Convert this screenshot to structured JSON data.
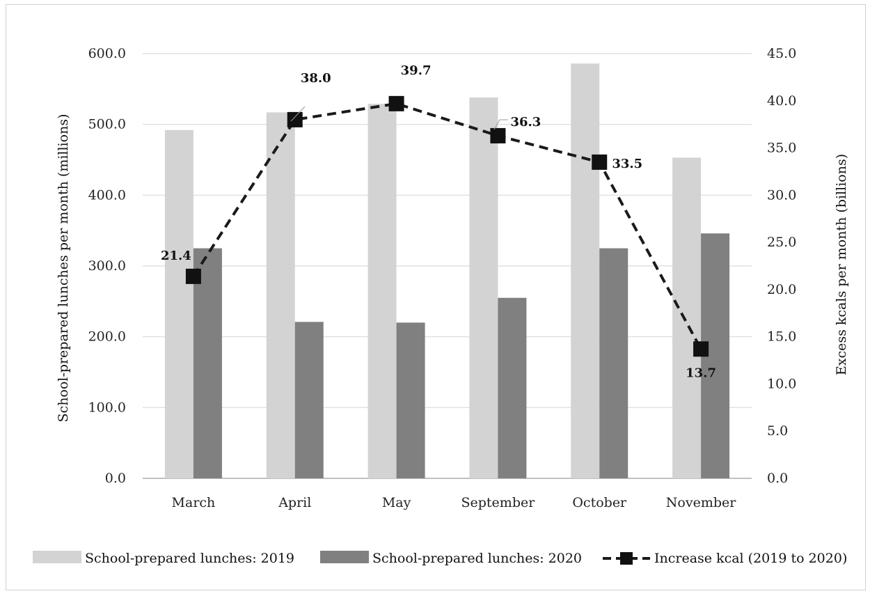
{
  "chart_data": {
    "type": "bar",
    "categories": [
      "March",
      "April",
      "May",
      "September",
      "October",
      "November"
    ],
    "series": [
      {
        "name": "School-prepared lunches: 2019",
        "kind": "bar",
        "axis": "left",
        "color": "#d3d3d3",
        "values": [
          492.0,
          517.0,
          529.0,
          538.0,
          586.0,
          453.0
        ]
      },
      {
        "name": "School-prepared lunches: 2020",
        "kind": "bar",
        "axis": "left",
        "color": "#808080",
        "values": [
          325.0,
          221.0,
          220.0,
          255.0,
          325.0,
          346.0
        ]
      },
      {
        "name": "Increase kcal (2019 to 2020)",
        "kind": "line-dashed",
        "axis": "right",
        "color": "#1a1a1a",
        "values": [
          21.4,
          38.0,
          39.7,
          36.3,
          33.5,
          13.7
        ],
        "labels": [
          "21.4",
          "38.0",
          "39.7",
          "36.3",
          "33.5",
          "13.7"
        ]
      }
    ],
    "ylabel": "School-prepared lunches per month (millions)",
    "y2label": "Excess kcals per month (billions)",
    "ylim": [
      0,
      600
    ],
    "y2lim": [
      0,
      45
    ],
    "yticks": [
      "0.0",
      "100.0",
      "200.0",
      "300.0",
      "400.0",
      "500.0",
      "600.0"
    ],
    "y2ticks": [
      "0.0",
      "5.0",
      "10.0",
      "15.0",
      "20.0",
      "25.0",
      "30.0",
      "35.0",
      "40.0",
      "45.0"
    ],
    "grid": true,
    "legend_position": "bottom"
  }
}
